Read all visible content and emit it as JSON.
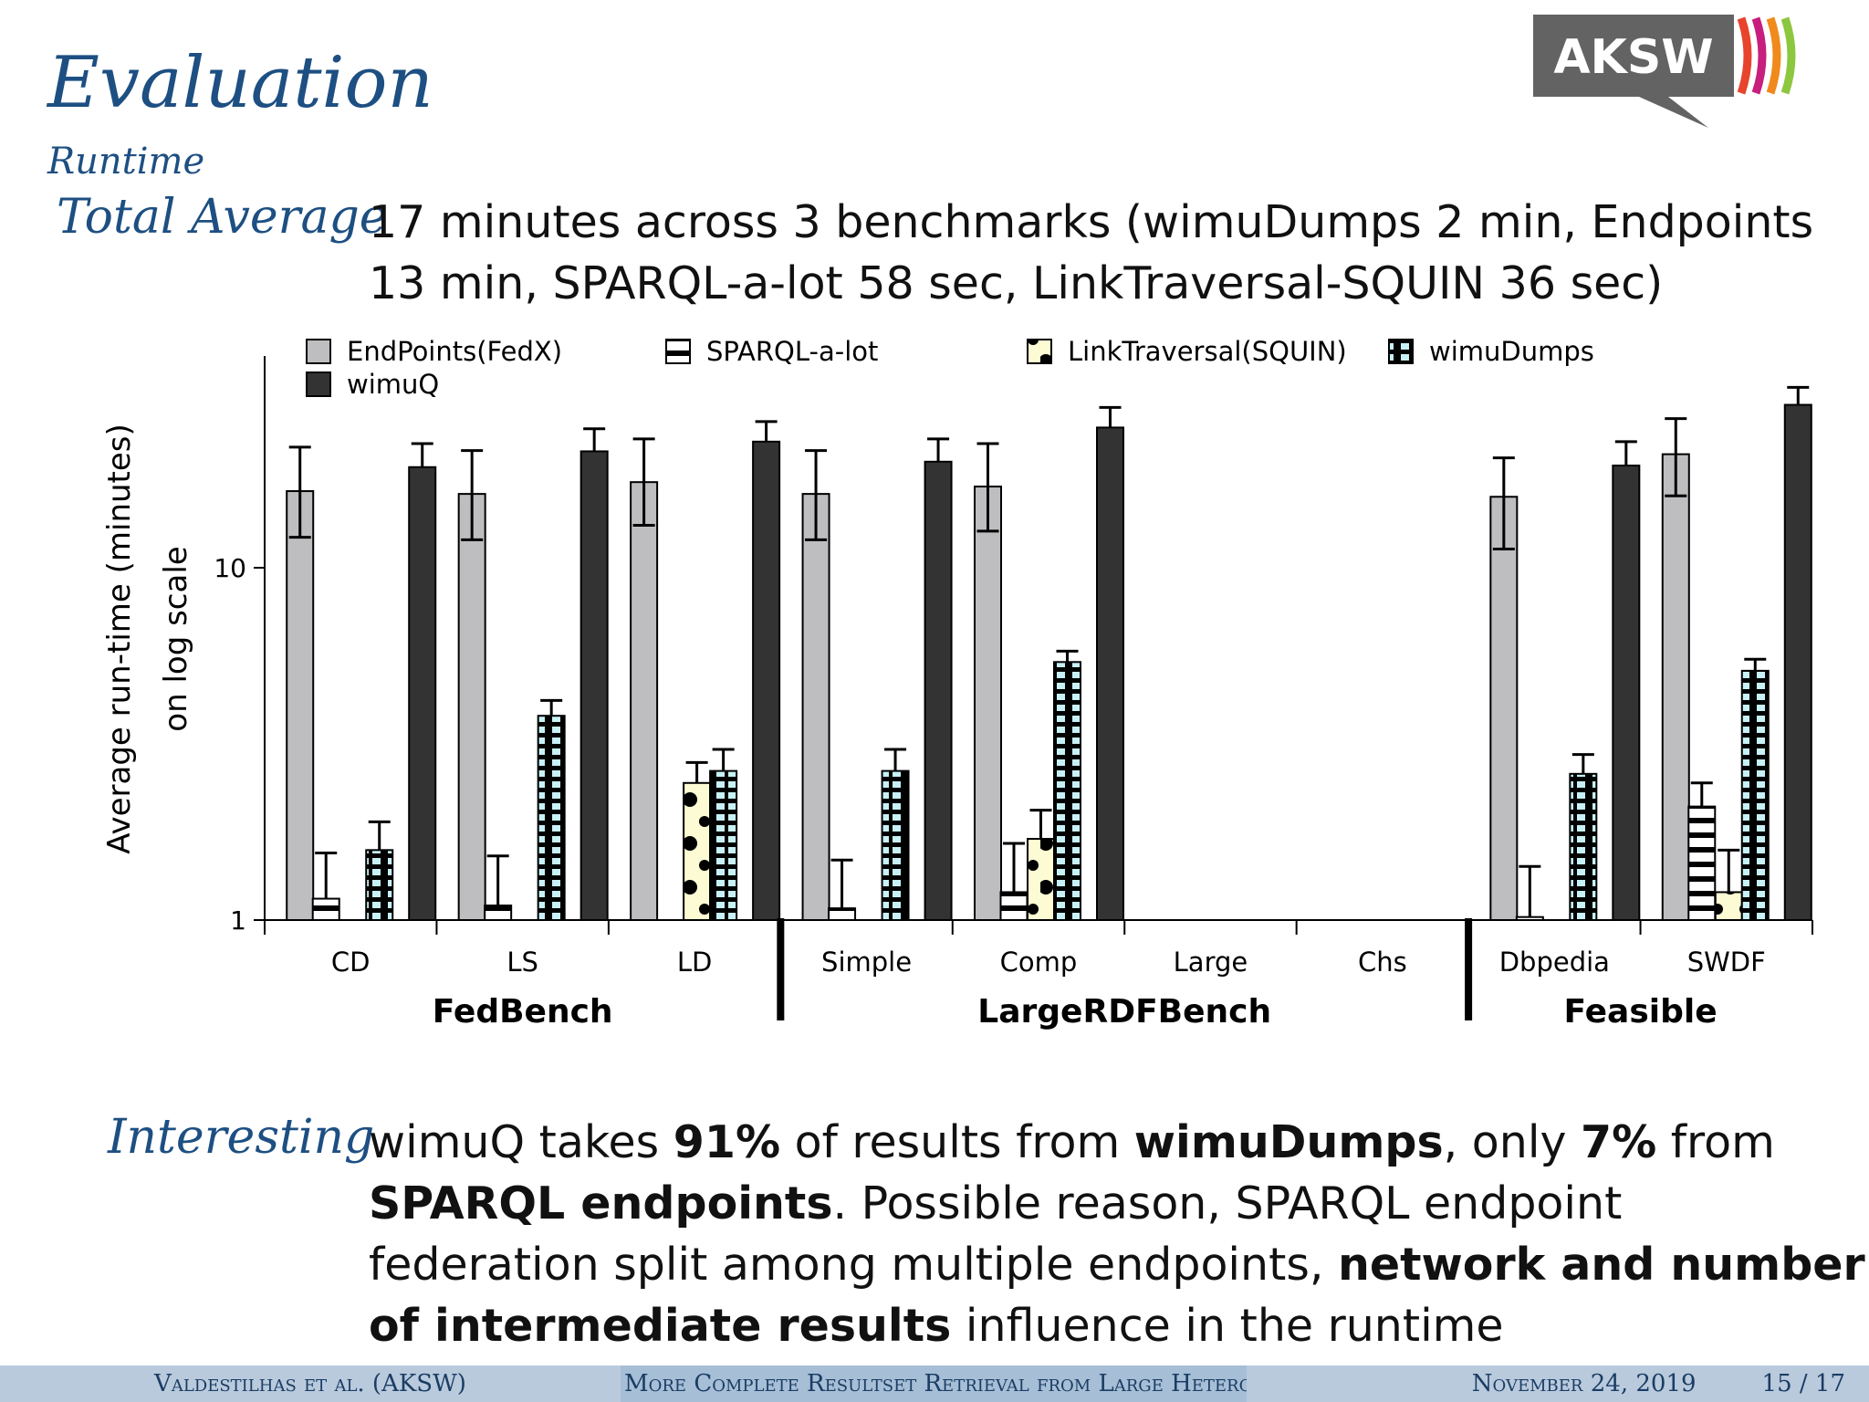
{
  "slide": {
    "title": "Evaluation",
    "subtitle": "Runtime",
    "total_term": "Total Average",
    "total_lines": [
      "17 minutes across 3 benchmarks (wimuDumps 2 min, Endpoints",
      "13 min, SPARQL-a-lot 58 sec, LinkTraversal-SQUIN 36 sec)"
    ],
    "interesting_term": "Interesting",
    "interesting": {
      "p1": "wimuQ takes ",
      "b1": "91%",
      "p2": " of results from ",
      "b2": "wimuDumps",
      "p3": ", only ",
      "b3": "7%",
      "p4": " from",
      "b4": "SPARQL endpoints",
      "p5": ". Possible reason, SPARQL endpoint",
      "p6": "federation split among multiple endpoints, ",
      "b5": "network and number",
      "b6": "of intermediate results",
      "p7": " influence in the runtime"
    }
  },
  "logo": {
    "text": "AKSW",
    "colors": [
      "#5f5f5f",
      "#e8432c",
      "#c81e7d",
      "#f08a1c",
      "#8dc63f"
    ]
  },
  "footer": {
    "author": "Valdestilhas et al.  (AKSW)",
    "talk": "More Complete Resultset Retrieval from Large Heterogeneous RDF Sources",
    "date": "November 24, 2019",
    "page": "15 / 17"
  },
  "chart_data": {
    "type": "bar",
    "ylabel_lines": [
      "Average run-time (minutes)",
      "on log scale"
    ],
    "yscale": "log",
    "ylim": [
      1,
      40
    ],
    "yticks": [
      {
        "value": 1,
        "label": "1"
      },
      {
        "value": 10,
        "label": "10"
      }
    ],
    "categories": [
      "CD",
      "LS",
      "LD",
      "Simple",
      "Comp",
      "Large",
      "Chs",
      "Dbpedia",
      "SWDF"
    ],
    "groups": [
      {
        "name": "FedBench",
        "categories": [
          "CD",
          "LS",
          "LD"
        ]
      },
      {
        "name": "LargeRDFBench",
        "categories": [
          "Simple",
          "Comp",
          "Large",
          "Chs"
        ]
      },
      {
        "name": "Feasible",
        "categories": [
          "Dbpedia",
          "SWDF"
        ]
      }
    ],
    "legend_placement": "top-left",
    "grid": false,
    "series": [
      {
        "name": "EndPoints(FedX)",
        "pattern": "solid",
        "color": "#bebdc0",
        "values": [
          16.5,
          16.2,
          17.5,
          16.2,
          17.0,
          null,
          null,
          15.9,
          21.0
        ],
        "err_high": [
          22.0,
          21.5,
          23.2,
          21.5,
          22.5,
          null,
          null,
          20.5,
          26.5
        ],
        "err_low": [
          12.2,
          12.0,
          13.2,
          12.0,
          12.7,
          null,
          null,
          11.3,
          16.0
        ]
      },
      {
        "name": "SPARQL-a-lot",
        "pattern": "hbars",
        "color": "#ffffff",
        "values": [
          1.15,
          1.1,
          null,
          1.08,
          1.2,
          null,
          null,
          1.02,
          2.1
        ],
        "err_high": [
          1.55,
          1.52,
          null,
          1.48,
          1.65,
          null,
          null,
          1.42,
          2.45
        ],
        "err_low": [
          null,
          null,
          null,
          null,
          null,
          null,
          null,
          null,
          null
        ]
      },
      {
        "name": "LinkTraversal(SQUIN)",
        "pattern": "dots",
        "color": "#fdfbd4",
        "values": [
          null,
          null,
          2.45,
          null,
          1.7,
          null,
          null,
          null,
          1.2
        ],
        "err_high": [
          null,
          null,
          2.8,
          null,
          2.05,
          null,
          null,
          null,
          1.58
        ],
        "err_low": [
          null,
          null,
          null,
          null,
          null,
          null,
          null,
          null,
          null
        ]
      },
      {
        "name": "wimuDumps",
        "pattern": "bricks",
        "color": "#c7f1f6",
        "values": [
          1.58,
          3.8,
          2.65,
          2.65,
          5.4,
          null,
          null,
          2.6,
          5.1
        ],
        "err_high": [
          1.9,
          4.2,
          3.05,
          3.05,
          5.8,
          null,
          null,
          2.95,
          5.5
        ],
        "err_low": [
          null,
          null,
          null,
          null,
          null,
          null,
          null,
          null,
          null
        ]
      },
      {
        "name": "wimuQ",
        "pattern": "solid",
        "color": "#333333",
        "values": [
          19.3,
          21.4,
          22.8,
          20.0,
          25.0,
          null,
          null,
          19.5,
          29.0
        ],
        "err_high": [
          22.5,
          24.8,
          26.0,
          23.2,
          28.5,
          null,
          null,
          22.8,
          32.5
        ],
        "err_low": [
          null,
          null,
          null,
          null,
          null,
          null,
          null,
          null,
          null
        ]
      }
    ]
  }
}
